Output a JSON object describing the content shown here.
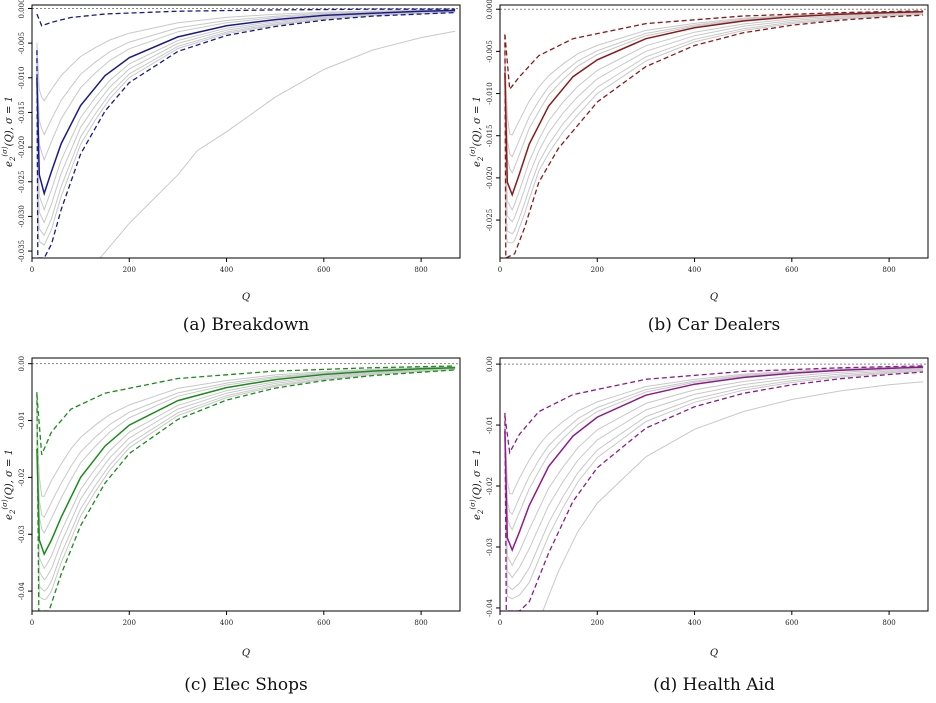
{
  "chart_data": [
    {
      "type": "line",
      "caption": "(a) Breakdown",
      "xlabel": "Q",
      "ylabel_main": "e",
      "ylabel_sub": "2",
      "ylabel_sup": "(σ)",
      "ylabel_rest": "(Q), σ = 1",
      "xlim": [
        0,
        880
      ],
      "ylim": [
        -0.036,
        0.0005
      ],
      "xticks": [
        0,
        200,
        400,
        600,
        800
      ],
      "yticks": [
        0.0,
        -0.005,
        -0.01,
        -0.015,
        -0.02,
        -0.025,
        -0.03,
        -0.035
      ],
      "ytick_labels": [
        "0.000",
        "-0.005",
        "-0.010",
        "-0.015",
        "-0.020",
        "-0.025",
        "-0.030",
        "-0.035"
      ],
      "reference_line": 0,
      "color": "#1a1a8c",
      "mean_curve": {
        "x": [
          10,
          15,
          25,
          40,
          60,
          100,
          150,
          200,
          300,
          400,
          500,
          600,
          700,
          800,
          870
        ],
        "y": [
          -0.01,
          -0.024,
          -0.0267,
          -0.0235,
          -0.0195,
          -0.014,
          -0.0097,
          -0.0071,
          -0.0041,
          -0.0025,
          -0.0016,
          -0.001,
          -0.0007,
          -0.0004,
          -0.0003
        ]
      },
      "lower_band": {
        "x": [
          10,
          12,
          25,
          40,
          60,
          100,
          150,
          200,
          300,
          400,
          500,
          600,
          700,
          800,
          870
        ],
        "y": [
          -0.006,
          -0.036,
          -0.036,
          -0.034,
          -0.029,
          -0.021,
          -0.0148,
          -0.0107,
          -0.0062,
          -0.0039,
          -0.0026,
          -0.0017,
          -0.0011,
          -0.0008,
          -0.0006
        ]
      },
      "upper_band": {
        "x": [
          10,
          20,
          40,
          80,
          150,
          300,
          500,
          700,
          870
        ],
        "y": [
          -0.0008,
          -0.0025,
          -0.002,
          -0.0013,
          -0.0008,
          -0.0004,
          -0.0002,
          -0.0001,
          -0.0001
        ]
      },
      "gray_curves": [
        {
          "x": [
            140,
            200,
            300,
            340,
            400,
            500,
            600,
            700,
            800,
            870
          ],
          "y": [
            -0.036,
            -0.031,
            -0.024,
            -0.0205,
            -0.0178,
            -0.0128,
            -0.0088,
            -0.006,
            -0.0042,
            -0.0033
          ]
        }
      ]
    },
    {
      "type": "line",
      "caption": "(b) Car Dealers",
      "xlabel": "Q",
      "ylabel_main": "e",
      "ylabel_sub": "2",
      "ylabel_sup": "(σ)",
      "ylabel_rest": "(Q), σ = 1",
      "xlim": [
        0,
        880
      ],
      "ylim": [
        -0.0295,
        0.0005
      ],
      "xticks": [
        0,
        200,
        400,
        600,
        800
      ],
      "yticks": [
        0.0,
        -0.005,
        -0.01,
        -0.015,
        -0.02,
        -0.025
      ],
      "ytick_labels": [
        "0.000",
        "-0.005",
        "-0.010",
        "-0.015",
        "-0.020",
        "-0.025"
      ],
      "reference_line": 0,
      "color": "#8b1a1a",
      "mean_curve": {
        "x": [
          10,
          15,
          25,
          40,
          60,
          100,
          150,
          200,
          300,
          400,
          500,
          600,
          700,
          800,
          870
        ],
        "y": [
          -0.0075,
          -0.0205,
          -0.022,
          -0.0195,
          -0.016,
          -0.0115,
          -0.008,
          -0.006,
          -0.0035,
          -0.0022,
          -0.0014,
          -0.0009,
          -0.0006,
          -0.0004,
          -0.0003
        ]
      },
      "lower_band": {
        "x": [
          10,
          12,
          30,
          50,
          80,
          120,
          200,
          300,
          400,
          500,
          600,
          700,
          800,
          870
        ],
        "y": [
          -0.003,
          -0.0295,
          -0.029,
          -0.026,
          -0.0205,
          -0.0165,
          -0.011,
          -0.0068,
          -0.0043,
          -0.0028,
          -0.0019,
          -0.0013,
          -0.0009,
          -0.0007
        ]
      },
      "upper_band": {
        "x": [
          10,
          20,
          40,
          80,
          150,
          300,
          500,
          700,
          870
        ],
        "y": [
          -0.003,
          -0.0095,
          -0.008,
          -0.0055,
          -0.0035,
          -0.0017,
          -0.0008,
          -0.0004,
          -0.0002
        ]
      },
      "gray_curves": []
    },
    {
      "type": "line",
      "caption": "(c) Elec Shops",
      "xlabel": "Q",
      "ylabel_main": "e",
      "ylabel_sub": "2",
      "ylabel_sup": "(σ)",
      "ylabel_rest": "(Q), σ = 1",
      "xlim": [
        0,
        880
      ],
      "ylim": [
        -0.0435,
        0.001
      ],
      "xticks": [
        0,
        200,
        400,
        600,
        800
      ],
      "yticks": [
        0.0,
        -0.01,
        -0.02,
        -0.03,
        -0.04
      ],
      "ytick_labels": [
        "0.00",
        "-0.01",
        "-0.02",
        "-0.03",
        "-0.04"
      ],
      "reference_line": 0,
      "color": "#1a8c1a",
      "mean_curve": {
        "x": [
          10,
          15,
          25,
          40,
          60,
          100,
          150,
          200,
          300,
          400,
          500,
          600,
          700,
          800,
          870
        ],
        "y": [
          -0.015,
          -0.031,
          -0.0335,
          -0.031,
          -0.027,
          -0.02,
          -0.0145,
          -0.0108,
          -0.0065,
          -0.0042,
          -0.0028,
          -0.0019,
          -0.0013,
          -0.0009,
          -0.0007
        ]
      },
      "lower_band": {
        "x": [
          10,
          14,
          35,
          60,
          100,
          150,
          200,
          300,
          400,
          500,
          600,
          700,
          800,
          870
        ],
        "y": [
          -0.005,
          -0.0435,
          -0.0435,
          -0.037,
          -0.0285,
          -0.021,
          -0.0158,
          -0.0098,
          -0.0064,
          -0.0043,
          -0.003,
          -0.0021,
          -0.0015,
          -0.0011
        ]
      },
      "upper_band": {
        "x": [
          10,
          20,
          40,
          80,
          150,
          300,
          500,
          700,
          870
        ],
        "y": [
          -0.0055,
          -0.016,
          -0.012,
          -0.008,
          -0.0052,
          -0.0026,
          -0.0013,
          -0.0007,
          -0.0004
        ]
      },
      "gray_curves": []
    },
    {
      "type": "line",
      "caption": "(d) Health Aid",
      "xlabel": "Q",
      "ylabel_main": "e",
      "ylabel_sub": "2",
      "ylabel_sup": "(σ)",
      "ylabel_rest": "(Q), σ = 1",
      "xlim": [
        0,
        880
      ],
      "ylim": [
        -0.0405,
        0.001
      ],
      "xticks": [
        0,
        200,
        400,
        600,
        800
      ],
      "yticks": [
        0.0,
        -0.01,
        -0.02,
        -0.03,
        -0.04
      ],
      "ytick_labels": [
        "0.00",
        "-0.01",
        "-0.02",
        "-0.03",
        "-0.04"
      ],
      "reference_line": 0,
      "color": "#8c1a8c",
      "mean_curve": {
        "x": [
          10,
          15,
          25,
          40,
          60,
          100,
          150,
          200,
          300,
          400,
          500,
          600,
          700,
          800,
          870
        ],
        "y": [
          -0.011,
          -0.0285,
          -0.0305,
          -0.0275,
          -0.0232,
          -0.0168,
          -0.0118,
          -0.0087,
          -0.0051,
          -0.0033,
          -0.0022,
          -0.0015,
          -0.001,
          -0.0007,
          -0.0005
        ]
      },
      "lower_band": {
        "x": [
          10,
          13,
          40,
          60,
          100,
          150,
          200,
          300,
          400,
          500,
          600,
          700,
          800,
          870
        ],
        "y": [
          -0.008,
          -0.0405,
          -0.0405,
          -0.039,
          -0.031,
          -0.0225,
          -0.017,
          -0.0105,
          -0.007,
          -0.0048,
          -0.0034,
          -0.0024,
          -0.0017,
          -0.0013
        ]
      },
      "upper_band": {
        "x": [
          10,
          20,
          40,
          80,
          150,
          300,
          500,
          700,
          870
        ],
        "y": [
          -0.0085,
          -0.0145,
          -0.0115,
          -0.0078,
          -0.005,
          -0.0025,
          -0.0012,
          -0.0006,
          -0.0003
        ]
      },
      "gray_curves": [
        {
          "x": [
            88,
            120,
            160,
            200,
            300,
            400,
            500,
            600,
            700,
            800,
            870
          ],
          "y": [
            -0.0405,
            -0.034,
            -0.0275,
            -0.0228,
            -0.0152,
            -0.0107,
            -0.0078,
            -0.0058,
            -0.0044,
            -0.0034,
            -0.0029
          ]
        }
      ]
    }
  ]
}
